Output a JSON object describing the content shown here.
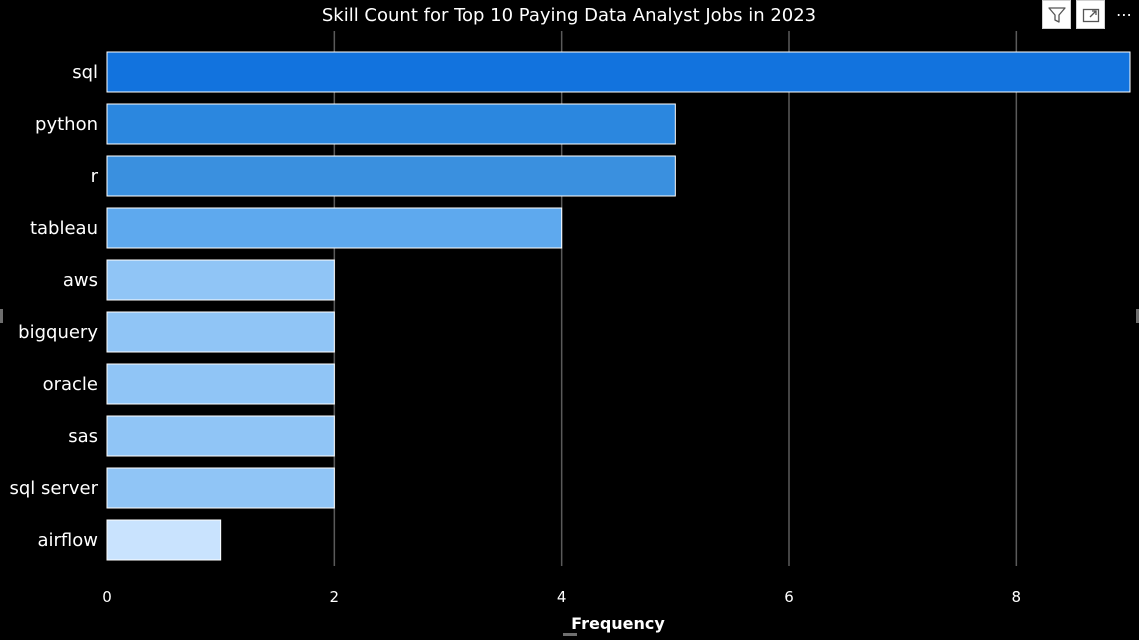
{
  "chart_data": {
    "type": "bar",
    "orientation": "horizontal",
    "title": "Skill Count for Top 10 Paying Data Analyst Jobs in 2023",
    "xlabel": "Frequency",
    "ylabel": "",
    "categories": [
      "sql",
      "python",
      "r",
      "tableau",
      "aws",
      "bigquery",
      "oracle",
      "sas",
      "sql server",
      "airflow"
    ],
    "values": [
      9,
      5,
      5,
      4,
      2,
      2,
      2,
      2,
      2,
      1
    ],
    "xlim": [
      0,
      9
    ],
    "xticks": [
      0,
      2,
      4,
      6,
      8
    ],
    "grid": true,
    "bar_colors": [
      "#1273DE",
      "#2B87DF",
      "#3A90DF",
      "#5EA9EE",
      "#90C5F6",
      "#90C5F6",
      "#90C5F6",
      "#90C5F6",
      "#90C5F6",
      "#C9E3FE"
    ],
    "gridline_color": "#5a5a5a",
    "text_color": "#ffffff"
  },
  "toolbar": {
    "icons": [
      "filter-icon",
      "focus-mode-icon",
      "more-options-icon"
    ]
  }
}
